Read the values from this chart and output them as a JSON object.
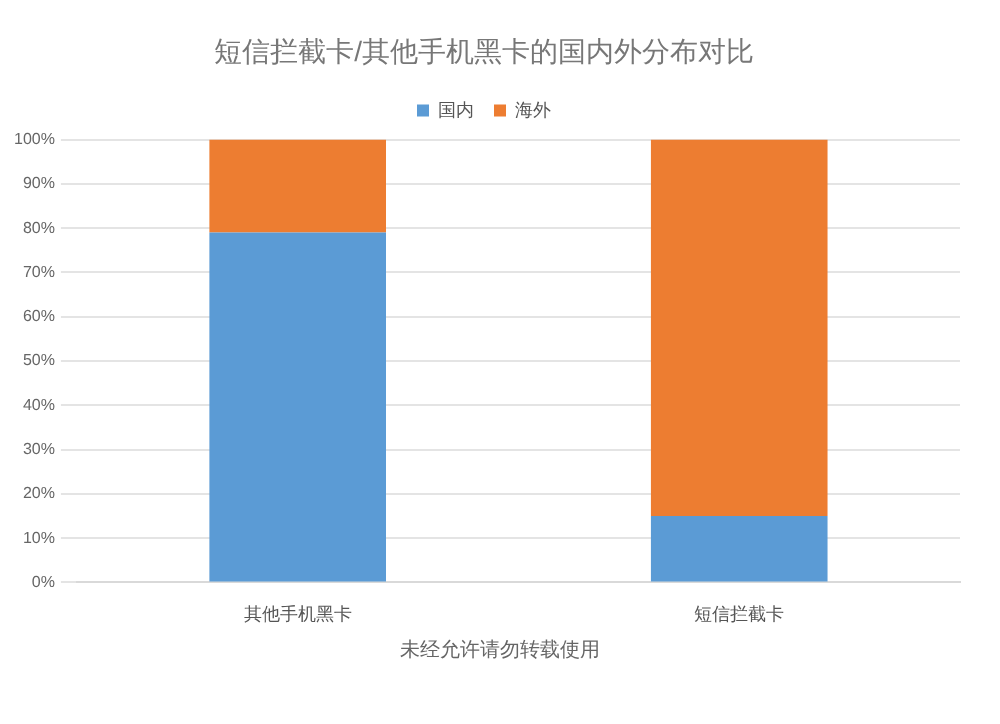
{
  "chart_data": {
    "type": "bar",
    "title": "短信拦截卡/其他手机黑卡的国内外分布对比",
    "categories": [
      "其他手机黑卡",
      "短信拦截卡"
    ],
    "series": [
      {
        "name": "国内",
        "color": "#5b9bd5",
        "values": [
          79,
          15
        ]
      },
      {
        "name": "海外",
        "color": "#ed7d31",
        "values": [
          21,
          85
        ]
      }
    ],
    "stacked": true,
    "ylim": [
      0,
      100
    ],
    "yticks": [
      {
        "value": 0,
        "label": "0%"
      },
      {
        "value": 10,
        "label": "10%"
      },
      {
        "value": 20,
        "label": "20%"
      },
      {
        "value": 30,
        "label": "30%"
      },
      {
        "value": 40,
        "label": "40%"
      },
      {
        "value": 50,
        "label": "50%"
      },
      {
        "value": 60,
        "label": "60%"
      },
      {
        "value": 70,
        "label": "70%"
      },
      {
        "value": 80,
        "label": "80%"
      },
      {
        "value": 90,
        "label": "90%"
      },
      {
        "value": 100,
        "label": "100%"
      }
    ],
    "grid": "y",
    "legend": "top",
    "annotations": [
      "未经允许请勿转载使用"
    ]
  }
}
